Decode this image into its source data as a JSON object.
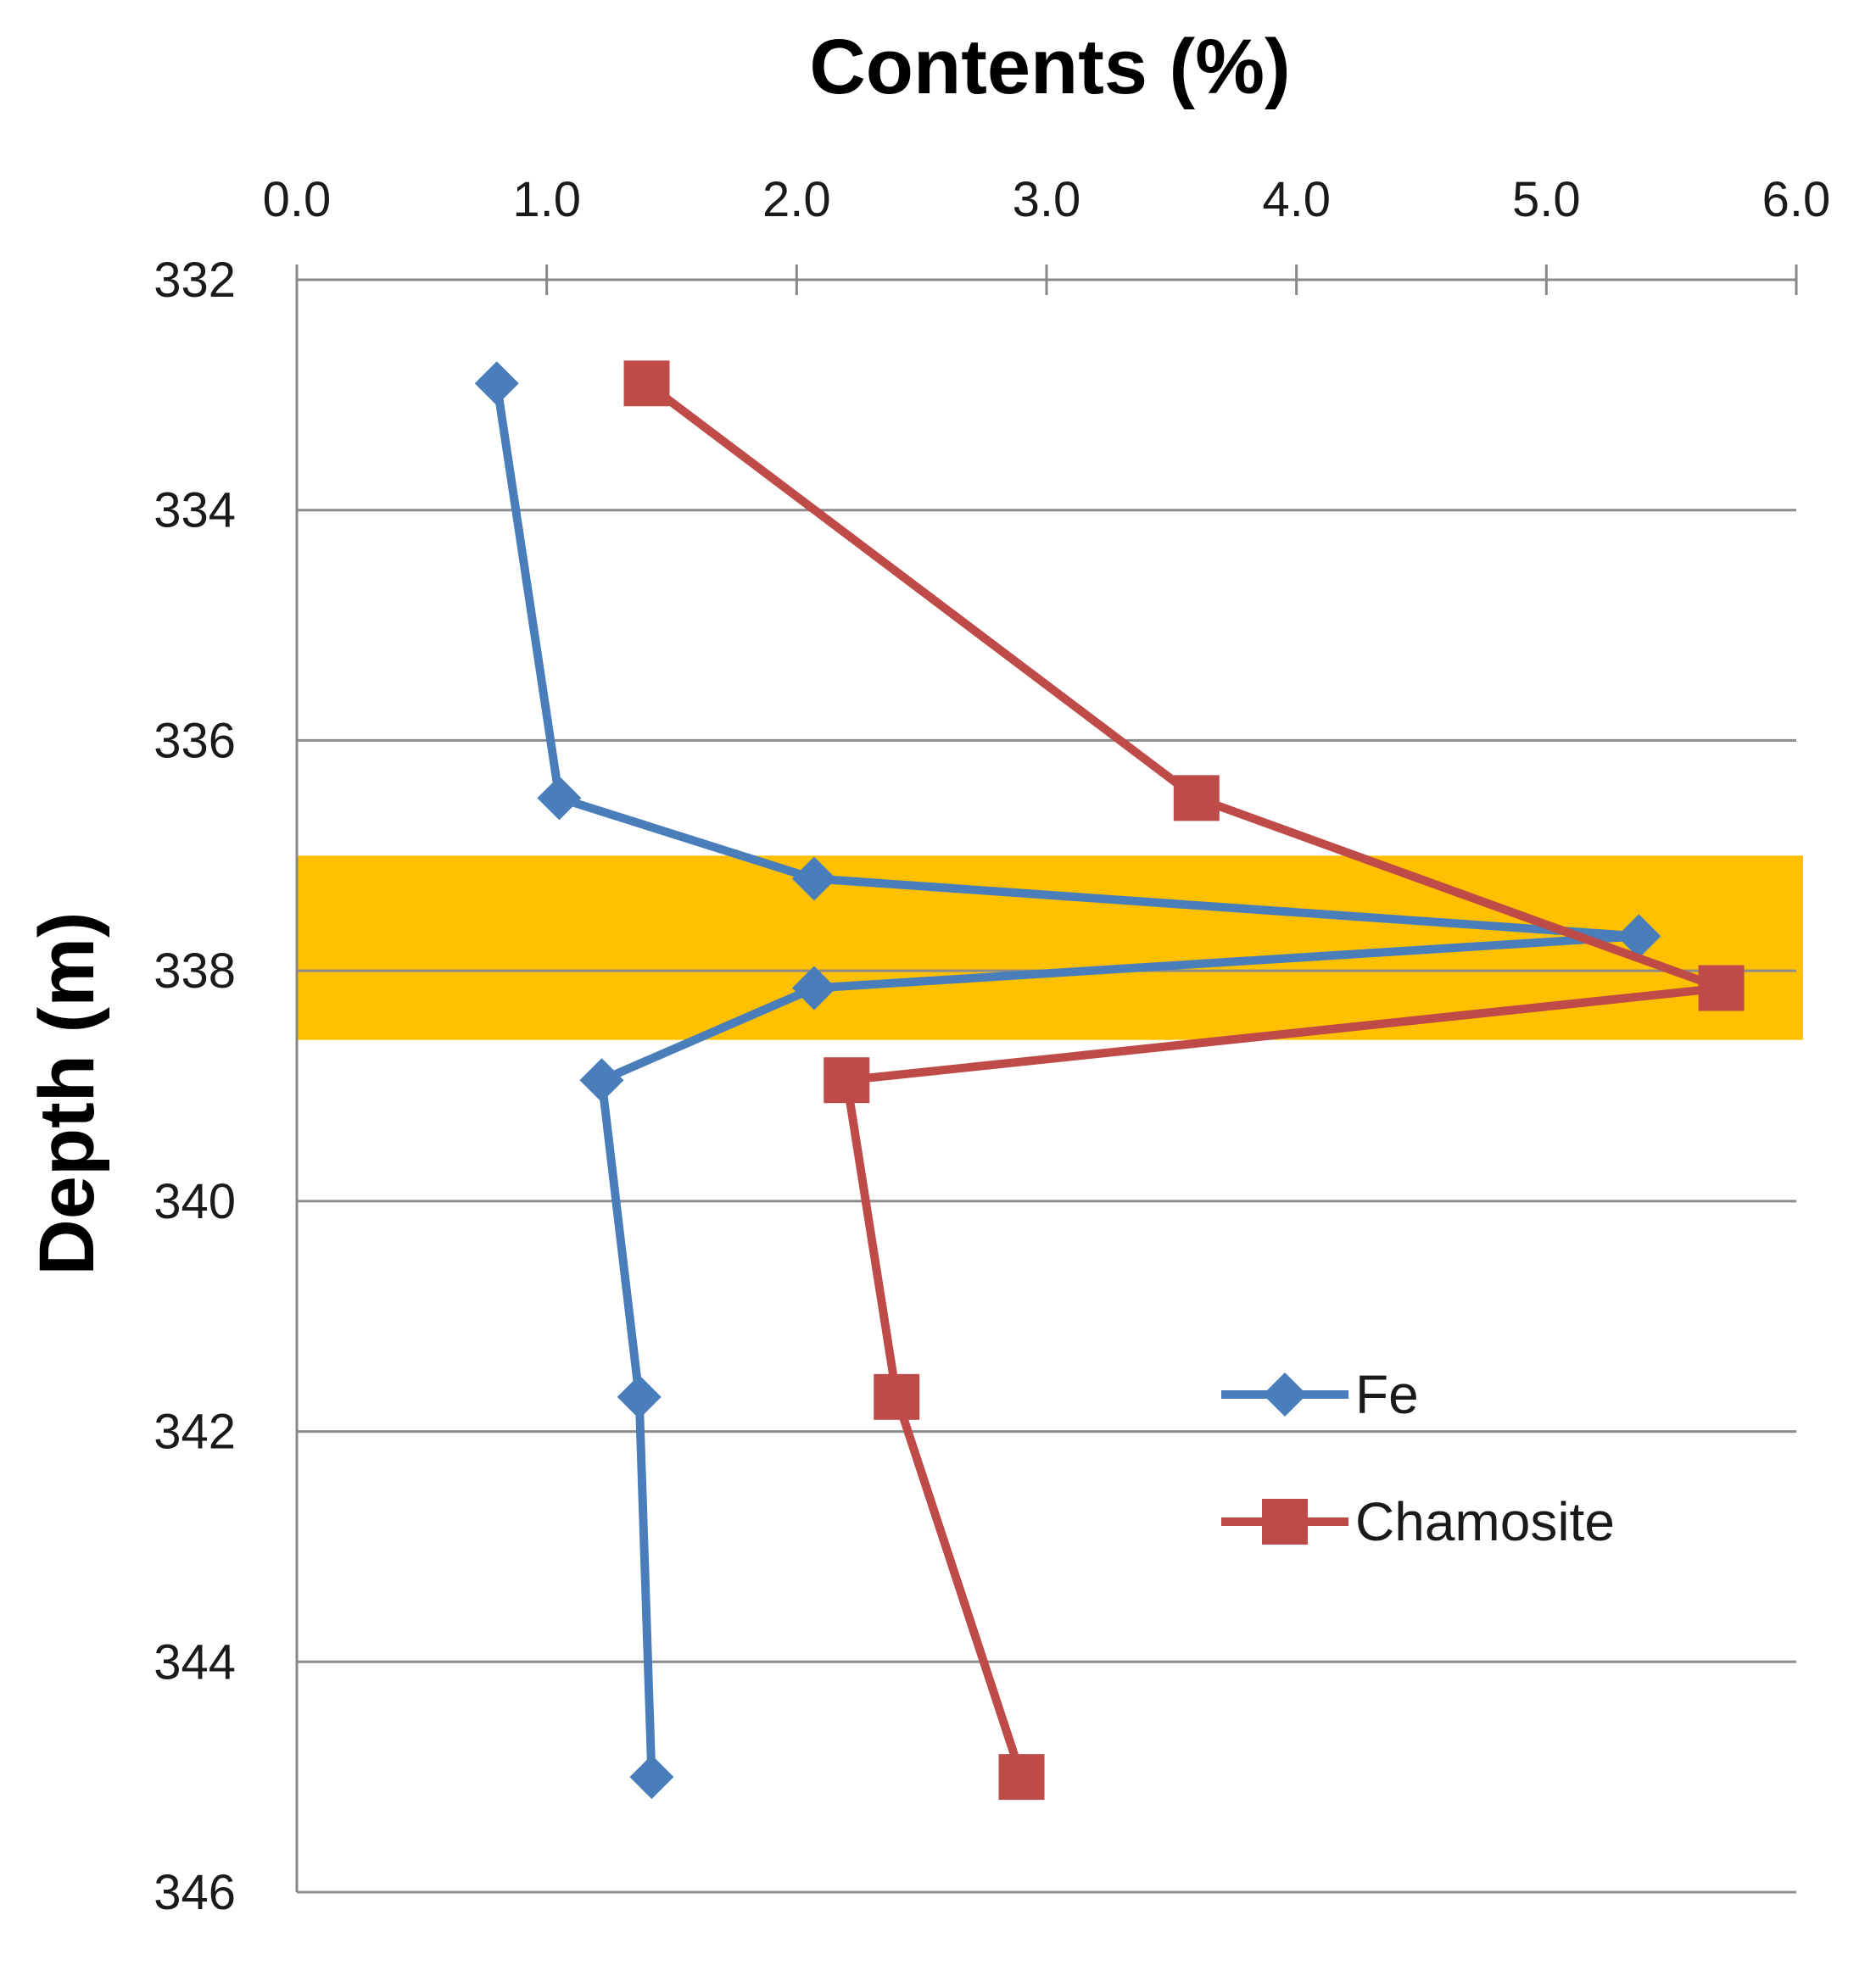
{
  "chart_data": {
    "type": "line",
    "orientation": "depth-profile",
    "title": "",
    "xlabel": "Contents (%)",
    "ylabel": "Depth (m)",
    "x_axis_position": "top",
    "y_axis_inverted": true,
    "xlim": [
      0.0,
      6.0
    ],
    "ylim": [
      332,
      346
    ],
    "x_ticks": [
      "0.0",
      "1.0",
      "2.0",
      "3.0",
      "4.0",
      "5.0",
      "6.0"
    ],
    "y_ticks": [
      "332",
      "334",
      "336",
      "338",
      "340",
      "342",
      "344",
      "346"
    ],
    "x_tick_values": [
      0,
      1,
      2,
      3,
      4,
      5,
      6
    ],
    "y_tick_values": [
      332,
      334,
      336,
      338,
      340,
      342,
      344,
      346
    ],
    "grid": "horizontal",
    "legend_position": "bottom-right",
    "highlight_band": {
      "from_depth": 337.0,
      "to_depth": 338.6,
      "color": "#ffc000"
    },
    "series": [
      {
        "name": "Fe",
        "marker": "diamond",
        "color": "#4a7ebb",
        "points": [
          {
            "x": 0.8,
            "depth": 332.9
          },
          {
            "x": 1.05,
            "depth": 336.5
          },
          {
            "x": 2.07,
            "depth": 337.2
          },
          {
            "x": 5.37,
            "depth": 337.7
          },
          {
            "x": 2.07,
            "depth": 338.15
          },
          {
            "x": 1.22,
            "depth": 338.95
          },
          {
            "x": 1.37,
            "depth": 341.7
          },
          {
            "x": 1.42,
            "depth": 345.0
          }
        ]
      },
      {
        "name": "Chamosite",
        "marker": "square",
        "color": "#be4b48",
        "points": [
          {
            "x": 1.4,
            "depth": 332.9
          },
          {
            "x": 3.6,
            "depth": 336.5
          },
          {
            "x": 5.7,
            "depth": 338.15
          },
          {
            "x": 2.2,
            "depth": 338.95
          },
          {
            "x": 2.4,
            "depth": 341.7
          },
          {
            "x": 2.9,
            "depth": 345.0
          }
        ]
      }
    ],
    "colors": {
      "axis": "#888888",
      "grid": "#8c8c8c",
      "band": "#ffc000"
    }
  }
}
